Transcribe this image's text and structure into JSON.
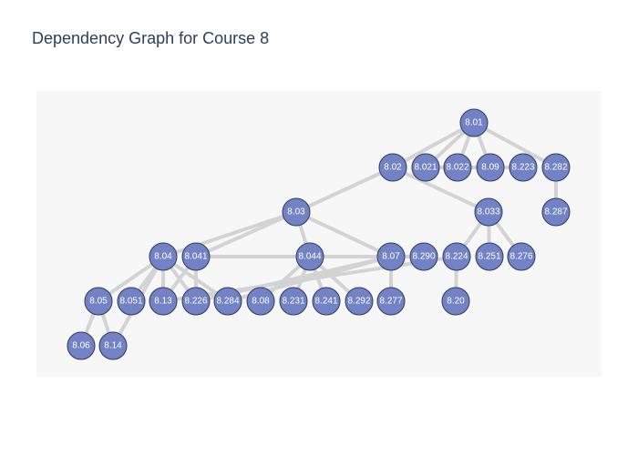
{
  "title": "Dependency Graph for Course 8",
  "colors": {
    "node_fill": "#7282c4",
    "node_stroke": "#2f3a5c",
    "edge": "#d3d3d3",
    "plot_background": "#f7f7f7",
    "title": "#2a3f5f"
  },
  "nodes": [
    {
      "id": "8.01",
      "label": "8.01"
    },
    {
      "id": "8.02",
      "label": "8.02"
    },
    {
      "id": "8.021",
      "label": "8.021"
    },
    {
      "id": "8.022",
      "label": "8.022"
    },
    {
      "id": "8.09",
      "label": "8.09"
    },
    {
      "id": "8.223",
      "label": "8.223"
    },
    {
      "id": "8.282",
      "label": "8.282"
    },
    {
      "id": "8.03",
      "label": "8.03"
    },
    {
      "id": "8.033",
      "label": "8.033"
    },
    {
      "id": "8.287",
      "label": "8.287"
    },
    {
      "id": "8.04",
      "label": "8.04"
    },
    {
      "id": "8.041",
      "label": "8.041"
    },
    {
      "id": "8.044",
      "label": "8.044"
    },
    {
      "id": "8.07",
      "label": "8.07"
    },
    {
      "id": "8.290",
      "label": "8.290"
    },
    {
      "id": "8.224",
      "label": "8.224"
    },
    {
      "id": "8.251",
      "label": "8.251"
    },
    {
      "id": "8.276",
      "label": "8.276"
    },
    {
      "id": "8.05",
      "label": "8.05"
    },
    {
      "id": "8.051",
      "label": "8.051"
    },
    {
      "id": "8.13",
      "label": "8.13"
    },
    {
      "id": "8.226",
      "label": "8.226"
    },
    {
      "id": "8.284",
      "label": "8.284"
    },
    {
      "id": "8.08",
      "label": "8.08"
    },
    {
      "id": "8.231",
      "label": "8.231"
    },
    {
      "id": "8.241",
      "label": "8.241"
    },
    {
      "id": "8.292",
      "label": "8.292"
    },
    {
      "id": "8.277",
      "label": "8.277"
    },
    {
      "id": "8.20",
      "label": "8.20"
    },
    {
      "id": "8.06",
      "label": "8.06"
    },
    {
      "id": "8.14",
      "label": "8.14"
    }
  ],
  "edges": [
    [
      "8.01",
      "8.02"
    ],
    [
      "8.01",
      "8.021"
    ],
    [
      "8.01",
      "8.022"
    ],
    [
      "8.01",
      "8.09"
    ],
    [
      "8.01",
      "8.282"
    ],
    [
      "8.021",
      "8.223"
    ],
    [
      "8.02",
      "8.03"
    ],
    [
      "8.02",
      "8.033"
    ],
    [
      "8.282",
      "8.287"
    ],
    [
      "8.03",
      "8.04"
    ],
    [
      "8.03",
      "8.041"
    ],
    [
      "8.03",
      "8.044"
    ],
    [
      "8.03",
      "8.07"
    ],
    [
      "8.033",
      "8.224"
    ],
    [
      "8.033",
      "8.251"
    ],
    [
      "8.033",
      "8.276"
    ],
    [
      "8.041",
      "8.07"
    ],
    [
      "8.044",
      "8.07"
    ],
    [
      "8.044",
      "8.08"
    ],
    [
      "8.044",
      "8.231"
    ],
    [
      "8.044",
      "8.241"
    ],
    [
      "8.044",
      "8.292"
    ],
    [
      "8.07",
      "8.290"
    ],
    [
      "8.07",
      "8.277"
    ],
    [
      "8.07",
      "8.226"
    ],
    [
      "8.07",
      "8.284"
    ],
    [
      "8.224",
      "8.20"
    ],
    [
      "8.224",
      "8.13"
    ],
    [
      "8.04",
      "8.05"
    ],
    [
      "8.04",
      "8.051"
    ],
    [
      "8.04",
      "8.13"
    ],
    [
      "8.04",
      "8.226"
    ],
    [
      "8.04",
      "8.284"
    ],
    [
      "8.04",
      "8.14"
    ],
    [
      "8.041",
      "8.13"
    ],
    [
      "8.041",
      "8.226"
    ],
    [
      "8.05",
      "8.06"
    ],
    [
      "8.05",
      "8.14"
    ]
  ]
}
